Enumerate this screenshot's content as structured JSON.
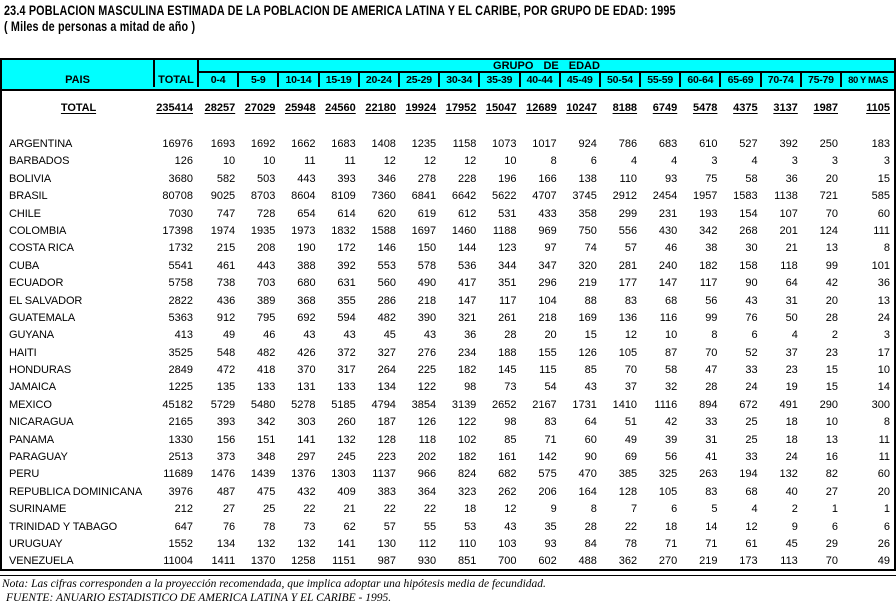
{
  "title": "23.4 POBLACION MASCULINA ESTIMADA DE LA POBLACION DE AMERICA LATINA Y EL CARIBE, POR GRUPO DE EDAD: 1995",
  "subtitle": "( Miles de personas a mitad de año )",
  "colors": {
    "header_bg": "#00FFFF",
    "border": "#000000",
    "text": "#000000"
  },
  "header": {
    "pais": "PAIS",
    "total": "TOTAL",
    "grupo": "GRUPO DE EDAD",
    "age_groups": [
      "0-4",
      "5-9",
      "10-14",
      "15-19",
      "20-24",
      "25-29",
      "30-34",
      "35-39",
      "40-44",
      "45-49",
      "50-54",
      "55-59",
      "60-64",
      "65-69",
      "70-74",
      "75-79",
      "80 Y MAS"
    ]
  },
  "total_row": {
    "label": "TOTAL",
    "total": 235414,
    "values": [
      28257,
      27029,
      25948,
      24560,
      22180,
      19924,
      17952,
      15047,
      12689,
      10247,
      8188,
      6749,
      5478,
      4375,
      3137,
      1987,
      1105
    ]
  },
  "rows": [
    {
      "pais": "ARGENTINA",
      "total": 16976,
      "values": [
        1693,
        1692,
        1662,
        1683,
        1408,
        1235,
        1158,
        1073,
        1017,
        924,
        786,
        683,
        610,
        527,
        392,
        250,
        183
      ]
    },
    {
      "pais": "BARBADOS",
      "total": 126,
      "values": [
        10,
        10,
        11,
        11,
        12,
        12,
        12,
        10,
        8,
        6,
        4,
        4,
        3,
        4,
        3,
        3,
        3
      ]
    },
    {
      "pais": "BOLIVIA",
      "total": 3680,
      "values": [
        582,
        503,
        443,
        393,
        346,
        278,
        228,
        196,
        166,
        138,
        110,
        93,
        75,
        58,
        36,
        20,
        15
      ]
    },
    {
      "pais": "BRASIL",
      "total": 80708,
      "values": [
        9025,
        8703,
        8604,
        8109,
        7360,
        6841,
        6642,
        5622,
        4707,
        3745,
        2912,
        2454,
        1957,
        1583,
        1138,
        721,
        585
      ]
    },
    {
      "pais": "CHILE",
      "total": 7030,
      "values": [
        747,
        728,
        654,
        614,
        620,
        619,
        612,
        531,
        433,
        358,
        299,
        231,
        193,
        154,
        107,
        70,
        60
      ]
    },
    {
      "pais": "COLOMBIA",
      "total": 17398,
      "values": [
        1974,
        1935,
        1973,
        1832,
        1588,
        1697,
        1460,
        1188,
        969,
        750,
        556,
        430,
        342,
        268,
        201,
        124,
        111
      ]
    },
    {
      "pais": "COSTA RICA",
      "total": 1732,
      "values": [
        215,
        208,
        190,
        172,
        146,
        150,
        144,
        123,
        97,
        74,
        57,
        46,
        38,
        30,
        21,
        13,
        8
      ]
    },
    {
      "pais": "CUBA",
      "total": 5541,
      "values": [
        461,
        443,
        388,
        392,
        553,
        578,
        536,
        344,
        347,
        320,
        281,
        240,
        182,
        158,
        118,
        99,
        101
      ]
    },
    {
      "pais": "ECUADOR",
      "total": 5758,
      "values": [
        738,
        703,
        680,
        631,
        560,
        490,
        417,
        351,
        296,
        219,
        177,
        147,
        117,
        90,
        64,
        42,
        36
      ]
    },
    {
      "pais": "EL SALVADOR",
      "total": 2822,
      "values": [
        436,
        389,
        368,
        355,
        286,
        218,
        147,
        117,
        104,
        88,
        83,
        68,
        56,
        43,
        31,
        20,
        13
      ]
    },
    {
      "pais": "GUATEMALA",
      "total": 5363,
      "values": [
        912,
        795,
        692,
        594,
        482,
        390,
        321,
        261,
        218,
        169,
        136,
        116,
        99,
        76,
        50,
        28,
        24
      ]
    },
    {
      "pais": "GUYANA",
      "total": 413,
      "values": [
        49,
        46,
        43,
        43,
        45,
        43,
        36,
        28,
        20,
        15,
        12,
        10,
        8,
        6,
        4,
        2,
        3
      ]
    },
    {
      "pais": "HAITI",
      "total": 3525,
      "values": [
        548,
        482,
        426,
        372,
        327,
        276,
        234,
        188,
        155,
        126,
        105,
        87,
        70,
        52,
        37,
        23,
        17
      ]
    },
    {
      "pais": "HONDURAS",
      "total": 2849,
      "values": [
        472,
        418,
        370,
        317,
        264,
        225,
        182,
        145,
        115,
        85,
        70,
        58,
        47,
        33,
        23,
        15,
        10
      ]
    },
    {
      "pais": "JAMAICA",
      "total": 1225,
      "values": [
        135,
        133,
        131,
        133,
        134,
        122,
        98,
        73,
        54,
        43,
        37,
        32,
        28,
        24,
        19,
        15,
        14
      ]
    },
    {
      "pais": "MEXICO",
      "total": 45182,
      "values": [
        5729,
        5480,
        5278,
        5185,
        4794,
        3854,
        3139,
        2652,
        2167,
        1731,
        1410,
        1116,
        894,
        672,
        491,
        290,
        300
      ]
    },
    {
      "pais": "NICARAGUA",
      "total": 2165,
      "values": [
        393,
        342,
        303,
        260,
        187,
        126,
        122,
        98,
        83,
        64,
        51,
        42,
        33,
        25,
        18,
        10,
        8
      ]
    },
    {
      "pais": "PANAMA",
      "total": 1330,
      "values": [
        156,
        151,
        141,
        132,
        128,
        118,
        102,
        85,
        71,
        60,
        49,
        39,
        31,
        25,
        18,
        13,
        11
      ]
    },
    {
      "pais": "PARAGUAY",
      "total": 2513,
      "values": [
        373,
        348,
        297,
        245,
        223,
        202,
        182,
        161,
        142,
        90,
        69,
        56,
        41,
        33,
        24,
        16,
        11
      ]
    },
    {
      "pais": "PERU",
      "total": 11689,
      "values": [
        1476,
        1439,
        1376,
        1303,
        1137,
        966,
        824,
        682,
        575,
        470,
        385,
        325,
        263,
        194,
        132,
        82,
        60
      ]
    },
    {
      "pais": "REPUBLICA DOMINICANA",
      "total": 3976,
      "values": [
        487,
        475,
        432,
        409,
        383,
        364,
        323,
        262,
        206,
        164,
        128,
        105,
        83,
        68,
        40,
        27,
        20
      ]
    },
    {
      "pais": "SURINAME",
      "total": 212,
      "values": [
        27,
        25,
        22,
        21,
        22,
        22,
        18,
        12,
        9,
        8,
        7,
        6,
        5,
        4,
        2,
        1,
        1
      ]
    },
    {
      "pais": "TRINIDAD Y TABAGO",
      "total": 647,
      "values": [
        76,
        78,
        73,
        62,
        57,
        55,
        53,
        43,
        35,
        28,
        22,
        18,
        14,
        12,
        9,
        6,
        6
      ]
    },
    {
      "pais": "URUGUAY",
      "total": 1552,
      "values": [
        134,
        132,
        132,
        141,
        130,
        112,
        110,
        103,
        93,
        84,
        78,
        71,
        71,
        61,
        45,
        29,
        26
      ]
    },
    {
      "pais": "VENEZUELA",
      "total": 11004,
      "values": [
        1411,
        1370,
        1258,
        1151,
        987,
        930,
        851,
        700,
        602,
        488,
        362,
        270,
        219,
        173,
        113,
        70,
        49
      ]
    }
  ],
  "footer": {
    "nota": "Nota: Las cifras corresponden a la proyección recomendada, que implica adoptar una hipótesis media de fecundidad.",
    "fuente": "FUENTE: ANUARIO ESTADISTICO DE AMERICA LATINA Y EL CARIBE - 1995."
  }
}
